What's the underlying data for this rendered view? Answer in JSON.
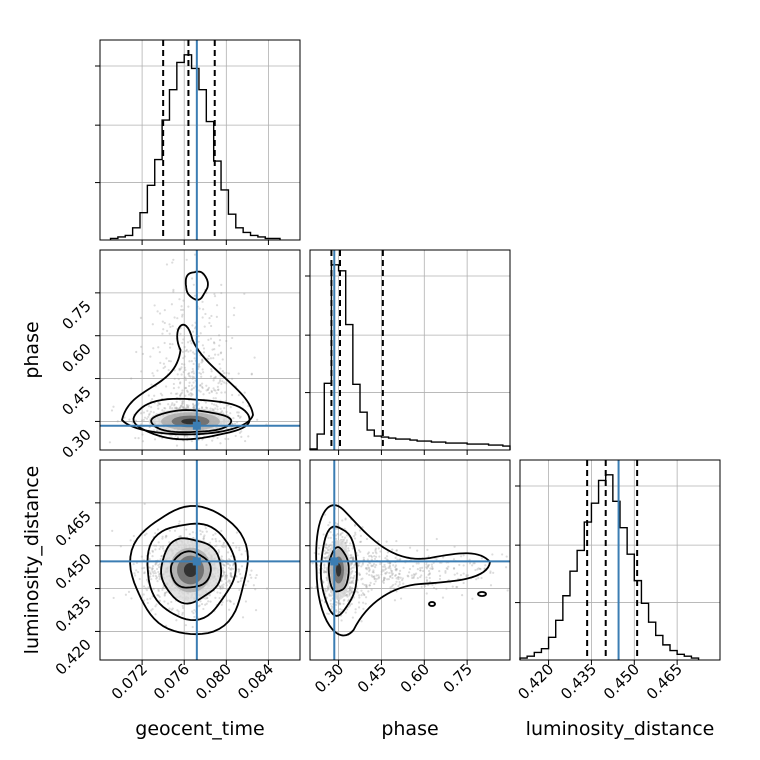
{
  "chart_data": {
    "type": "corner",
    "parameters": [
      {
        "key": "geocent_time",
        "label": "geocent_time",
        "range": [
          0.068,
          0.087
        ],
        "ticks": [
          0.072,
          0.076,
          0.08,
          0.084
        ],
        "tick_labels": [
          "0.072",
          "0.076",
          "0.080",
          "0.084"
        ],
        "truth": 0.0772,
        "quantiles": [
          0.074,
          0.0764,
          0.0789
        ],
        "mean": 0.0766,
        "sd": 0.0022
      },
      {
        "key": "phase",
        "label": "phase",
        "range": [
          0.2,
          0.9
        ],
        "ticks": [
          0.3,
          0.45,
          0.6,
          0.75
        ],
        "tick_labels": [
          "0.30",
          "0.45",
          "0.60",
          "0.75"
        ],
        "truth": 0.285,
        "quantiles": [
          0.275,
          0.305,
          0.455
        ],
        "mean": 0.3,
        "sd": 0.03
      },
      {
        "key": "luminosity_distance",
        "label": "luminosity_distance",
        "range": [
          0.41,
          0.48
        ],
        "ticks": [
          0.42,
          0.435,
          0.45,
          0.465
        ],
        "tick_labels": [
          "0.420",
          "0.435",
          "0.450",
          "0.465"
        ],
        "truth": 0.4445,
        "quantiles": [
          0.4335,
          0.44,
          0.451
        ],
        "mean": 0.4415,
        "sd": 0.0065
      }
    ],
    "histograms": {
      "geocent_time": {
        "bin_edges": [
          0.069,
          0.0697,
          0.0704,
          0.0711,
          0.0718,
          0.0725,
          0.0732,
          0.0739,
          0.0746,
          0.0753,
          0.076,
          0.0767,
          0.0774,
          0.0781,
          0.0788,
          0.0795,
          0.0802,
          0.0809,
          0.0816,
          0.0823,
          0.083,
          0.0837,
          0.0844,
          0.0851
        ],
        "counts": [
          1,
          2,
          3,
          8,
          18,
          36,
          53,
          79,
          99,
          117,
          122,
          113,
          99,
          78,
          52,
          33,
          17,
          8,
          5,
          3,
          2,
          1,
          1
        ]
      },
      "phase": {
        "bin_edges": [
          0.2,
          0.225,
          0.25,
          0.275,
          0.3,
          0.325,
          0.35,
          0.375,
          0.4,
          0.425,
          0.45,
          0.475,
          0.5,
          0.525,
          0.55,
          0.575,
          0.6,
          0.625,
          0.65,
          0.675,
          0.7,
          0.725,
          0.75,
          0.775,
          0.8,
          0.825,
          0.85,
          0.875,
          0.9
        ],
        "counts": [
          1,
          16,
          67,
          186,
          180,
          126,
          66,
          38,
          20,
          14,
          13,
          12,
          11,
          11,
          10,
          9,
          9,
          8,
          8,
          7,
          7,
          7,
          6,
          6,
          6,
          5,
          5,
          4
        ]
      },
      "luminosity_distance": {
        "bin_edges": [
          0.41,
          0.4125,
          0.415,
          0.4175,
          0.42,
          0.4225,
          0.425,
          0.4275,
          0.43,
          0.4325,
          0.435,
          0.4375,
          0.44,
          0.4425,
          0.445,
          0.4475,
          0.45,
          0.4525,
          0.455,
          0.4575,
          0.46,
          0.4625,
          0.465,
          0.4675,
          0.47,
          0.4725
        ],
        "counts": [
          1,
          2,
          4,
          6,
          12,
          21,
          34,
          47,
          58,
          73,
          83,
          95,
          98,
          84,
          70,
          56,
          42,
          30,
          20,
          13,
          8,
          5,
          3,
          2,
          1
        ]
      }
    },
    "contour_levels_2d": [
      "phase vs geocent_time",
      "luminosity_distance vs geocent_time",
      "luminosity_distance vs phase"
    ],
    "grid": true,
    "legend": "none"
  }
}
